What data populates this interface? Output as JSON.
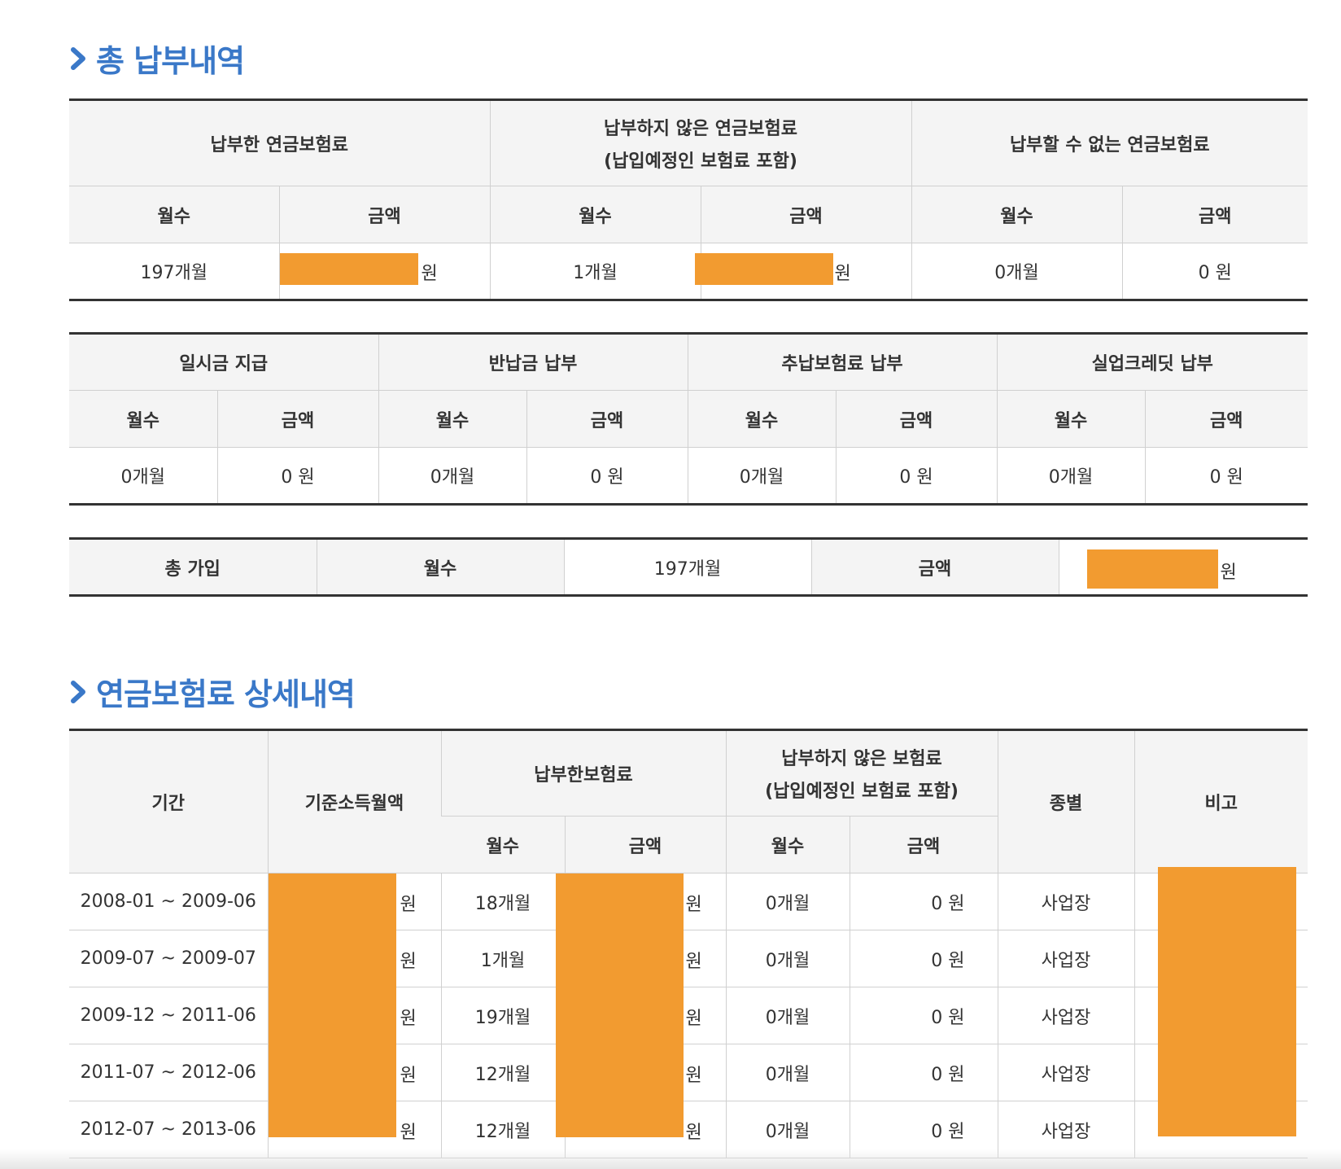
{
  "sections": {
    "total_title": "총 납부내역",
    "detail_title": "연금보험료 상세내역"
  },
  "summary": {
    "paid_label": "납부한 연금보험료",
    "unpaid_label_line1": "납부하지 않은 연금보험료",
    "unpaid_label_line2": "(납입예정인 보험료 포함)",
    "cannot_label": "납부할 수 없는 연금보험료",
    "months_label": "월수",
    "amount_label": "금액",
    "paid_months": "197개월",
    "unpaid_months": "1개월",
    "cannot_months": "0개월",
    "cannot_amount": "0 원",
    "won": "원"
  },
  "special": {
    "groups": [
      "일시금 지급",
      "반납금 납부",
      "추납보험료 납부",
      "실업크레딧 납부"
    ],
    "months_label": "월수",
    "amount_label": "금액",
    "months_value": "0개월",
    "amount_value": "0 원"
  },
  "total_join": {
    "label": "총 가입",
    "months_label": "월수",
    "months_value": "197개월",
    "amount_label": "금액",
    "won": "원"
  },
  "detail": {
    "headers": {
      "period": "기간",
      "base_income": "기준소득월액",
      "paid": "납부한보험료",
      "unpaid_line1": "납부하지 않은 보험료",
      "unpaid_line2": "(납입예정인 보험료 포함)",
      "type": "종별",
      "note": "비고",
      "months": "월수",
      "amount": "금액"
    },
    "won": "원",
    "rows": [
      {
        "period": "2008-01 ~ 2009-06",
        "paid_months": "18개월",
        "unpaid_months": "0개월",
        "unpaid_amount": "0 원",
        "type": "사업장"
      },
      {
        "period": "2009-07 ~ 2009-07",
        "paid_months": "1개월",
        "unpaid_months": "0개월",
        "unpaid_amount": "0 원",
        "type": "사업장"
      },
      {
        "period": "2009-12 ~ 2011-06",
        "paid_months": "19개월",
        "unpaid_months": "0개월",
        "unpaid_amount": "0 원",
        "type": "사업장"
      },
      {
        "period": "2011-07 ~ 2012-06",
        "paid_months": "12개월",
        "unpaid_months": "0개월",
        "unpaid_amount": "0 원",
        "type": "사업장"
      },
      {
        "period": "2012-07 ~ 2013-06",
        "paid_months": "12개월",
        "unpaid_months": "0개월",
        "unpaid_amount": "0 원",
        "type": "사업장"
      }
    ]
  },
  "colors": {
    "title_blue": "#3a78c8",
    "redaction_orange": "#f29b30",
    "header_bg": "#f4f4f4"
  }
}
